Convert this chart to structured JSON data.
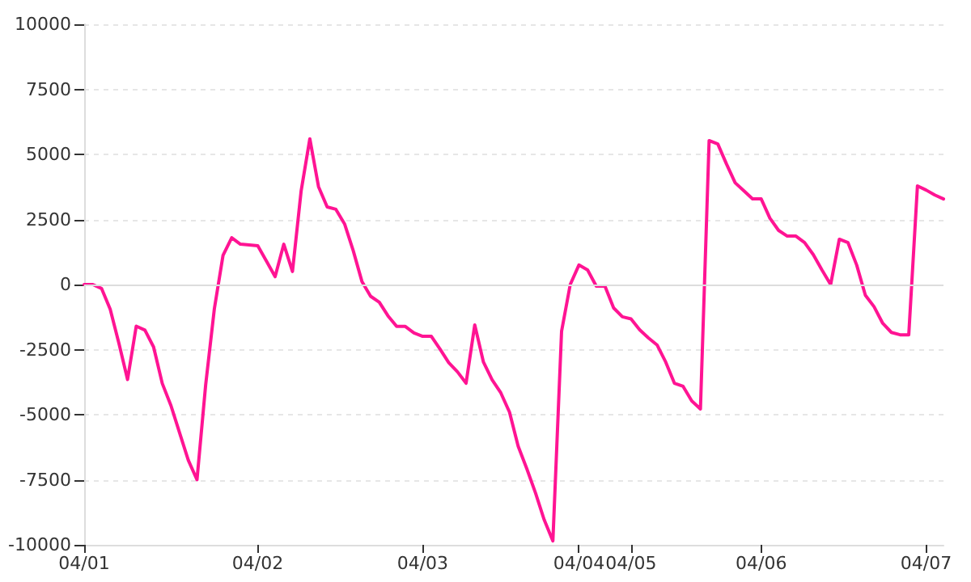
{
  "chart_data": {
    "type": "line",
    "categories": [
      "04/01",
      null,
      null,
      null,
      null,
      null,
      null,
      null,
      null,
      null,
      null,
      null,
      null,
      null,
      null,
      null,
      null,
      null,
      null,
      null,
      "04/02",
      null,
      null,
      null,
      null,
      null,
      null,
      null,
      null,
      null,
      null,
      null,
      null,
      null,
      null,
      null,
      null,
      null,
      null,
      "04/03",
      null,
      null,
      null,
      null,
      null,
      null,
      null,
      null,
      null,
      null,
      null,
      null,
      null,
      null,
      null,
      null,
      null,
      "04/04",
      null,
      null,
      null,
      null,
      null,
      "04/05",
      null,
      null,
      null,
      null,
      null,
      null,
      null,
      null,
      null,
      null,
      null,
      null,
      null,
      null,
      "04/06",
      null,
      null,
      null,
      null,
      null,
      null,
      null,
      null,
      null,
      null,
      null,
      null,
      null,
      null,
      null,
      null,
      null,
      null,
      "04/07",
      null,
      null
    ],
    "series": [
      {
        "color": "#ff1493",
        "values": [
          0,
          0,
          -150,
          -950,
          -2250,
          -3650,
          -1600,
          -1750,
          -2400,
          -3800,
          -4650,
          -5700,
          -6750,
          -7500,
          -3850,
          -930,
          1120,
          1800,
          1550,
          1520,
          1490,
          900,
          300,
          1550,
          500,
          3600,
          5600,
          3760,
          2980,
          2890,
          2330,
          1300,
          120,
          -450,
          -680,
          -1200,
          -1610,
          -1610,
          -1860,
          -1990,
          -1990,
          -2480,
          -3000,
          -3350,
          -3790,
          -1550,
          -2980,
          -3660,
          -4160,
          -4900,
          -6210,
          -7080,
          -8010,
          -9040,
          -9850,
          -1800,
          0,
          750,
          560,
          -60,
          -60,
          -900,
          -1240,
          -1320,
          -1740,
          -2050,
          -2320,
          -2980,
          -3790,
          -3910,
          -4470,
          -4780,
          5530,
          5400,
          4630,
          3910,
          3600,
          3290,
          3290,
          2550,
          2080,
          1860,
          1860,
          1610,
          1150,
          560,
          0,
          1740,
          1610,
          750,
          -410,
          -850,
          -1490,
          -1840,
          -1930,
          -1930,
          3790,
          3630,
          3440,
          3290
        ]
      }
    ],
    "ylim": [
      -10000,
      10000
    ],
    "yticks": [
      -10000,
      -7500,
      -5000,
      -2500,
      0,
      2500,
      5000,
      7500,
      10000
    ],
    "grid": "y",
    "marker": "none",
    "line_style": "solid",
    "ref_lines": [
      {
        "axis": "y",
        "value": 0,
        "color": "#dddddd"
      }
    ]
  }
}
